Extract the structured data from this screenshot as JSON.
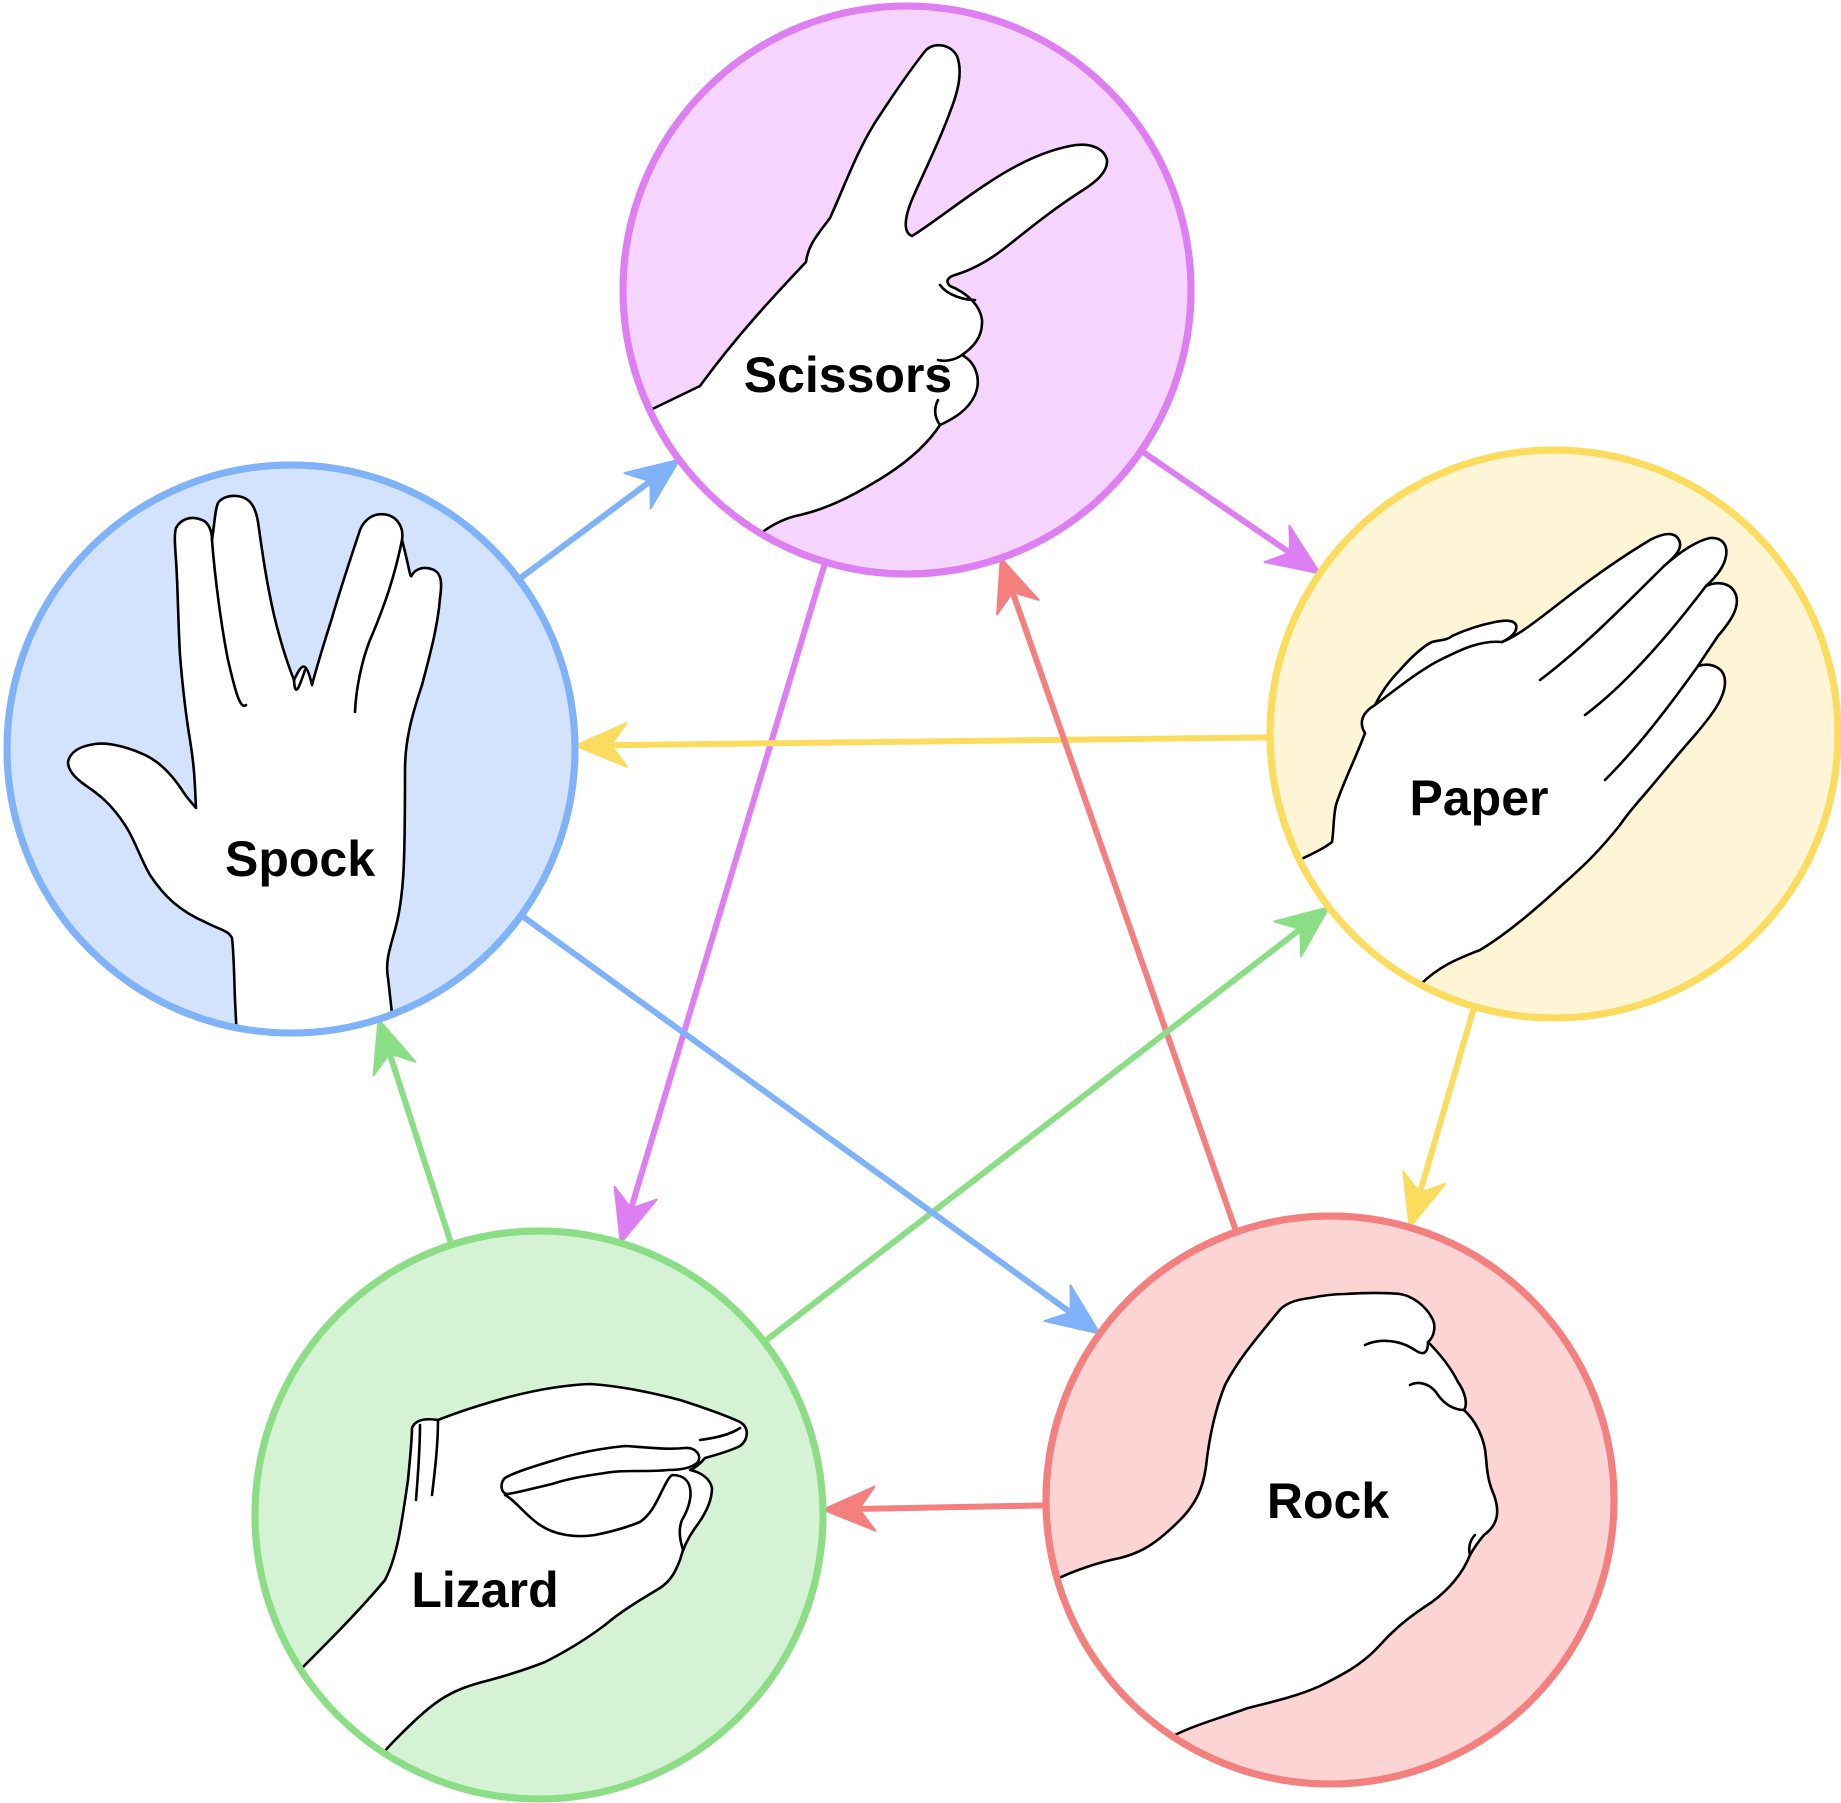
{
  "diagram": {
    "nodes": {
      "scissors": {
        "label": "Scissors",
        "stroke": "#dd7ef3",
        "fill": "#f5d4fd",
        "icon": "scissors-hand-icon"
      },
      "paper": {
        "label": "Paper",
        "stroke": "#fbdc5e",
        "fill": "#fdf5d6",
        "icon": "paper-hand-icon"
      },
      "rock": {
        "label": "Rock",
        "stroke": "#f47f7f",
        "fill": "#fdd4d4",
        "icon": "rock-fist-icon"
      },
      "lizard": {
        "label": "Lizard",
        "stroke": "#8cde86",
        "fill": "#d6f2d4",
        "icon": "lizard-hand-icon"
      },
      "spock": {
        "label": "Spock",
        "stroke": "#7fb2f8",
        "fill": "#d4e3fd",
        "icon": "spock-hand-icon"
      }
    },
    "edges": [
      {
        "from": "scissors",
        "to": "paper"
      },
      {
        "from": "scissors",
        "to": "lizard"
      },
      {
        "from": "paper",
        "to": "spock"
      },
      {
        "from": "paper",
        "to": "rock"
      },
      {
        "from": "rock",
        "to": "lizard"
      },
      {
        "from": "rock",
        "to": "scissors"
      },
      {
        "from": "lizard",
        "to": "spock"
      },
      {
        "from": "lizard",
        "to": "paper"
      },
      {
        "from": "spock",
        "to": "scissors"
      },
      {
        "from": "spock",
        "to": "rock"
      }
    ]
  }
}
